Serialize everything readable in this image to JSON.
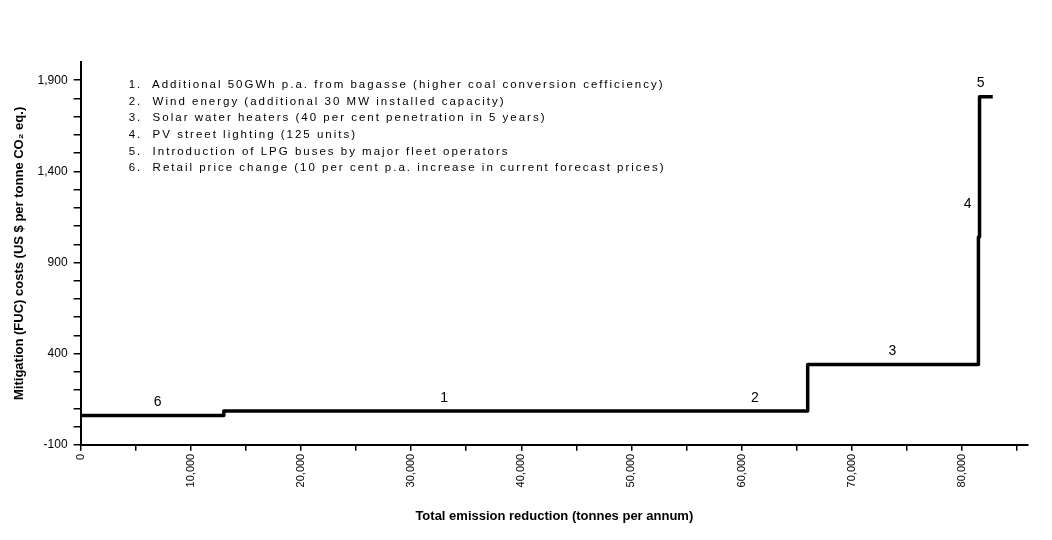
{
  "chart_data": {
    "type": "step",
    "xlabel": "Total emission reduction (tonnes per annum)",
    "ylabel": "Mitigation (FUC) costs (US $ per tonne CO₂ eq.)",
    "x": [
      0,
      13000,
      66000,
      81500,
      81600,
      82800
    ],
    "series": [
      {
        "color": "#000000",
        "values": [
          60,
          85,
          340,
          1040,
          1810,
          1810
        ]
      }
    ],
    "xlim": [
      0,
      86000
    ],
    "xticks": [
      {
        "value": 0,
        "label": "0"
      },
      {
        "value": 5000,
        "label": null
      },
      {
        "value": 10000,
        "label": "10,000"
      },
      {
        "value": 15000,
        "label": null
      },
      {
        "value": 20000,
        "label": "20,000"
      },
      {
        "value": 25000,
        "label": null
      },
      {
        "value": 30000,
        "label": "30,000"
      },
      {
        "value": 35000,
        "label": null
      },
      {
        "value": 40000,
        "label": "40,000"
      },
      {
        "value": 45000,
        "label": null
      },
      {
        "value": 50000,
        "label": "50,000"
      },
      {
        "value": 55000,
        "label": null
      },
      {
        "value": 60000,
        "label": "60,000"
      },
      {
        "value": 65000,
        "label": null
      },
      {
        "value": 70000,
        "label": "70,000"
      },
      {
        "value": 75000,
        "label": null
      },
      {
        "value": 80000,
        "label": "80,000"
      },
      {
        "value": 85000,
        "label": null
      }
    ],
    "ylim": [
      -100,
      2000
    ],
    "yticks": [
      -100,
      {
        "value": 0,
        "label": null
      },
      {
        "value": 100,
        "label": null
      },
      {
        "value": 200,
        "label": null
      },
      {
        "value": 300,
        "label": null
      },
      400,
      {
        "value": 500,
        "label": null
      },
      {
        "value": 600,
        "label": null
      },
      {
        "value": 700,
        "label": null
      },
      {
        "value": 800,
        "label": null
      },
      900,
      {
        "value": 1000,
        "label": null
      },
      {
        "value": 1100,
        "label": null
      },
      {
        "value": 1200,
        "label": null
      },
      {
        "value": 1300,
        "label": null
      },
      {
        "value": 1400,
        "label": "1,400"
      },
      {
        "value": 1500,
        "label": null
      },
      {
        "value": 1600,
        "label": null
      },
      {
        "value": 1700,
        "label": null
      },
      {
        "value": 1800,
        "label": null
      },
      {
        "value": 1900,
        "label": "1,900"
      }
    ],
    "annotations": [
      "1.  Additional 50GWh p.a. from bagasse (higher coal conversion cefficiency)",
      "2.  Wind energy (additional 30 MW installed capacity)",
      "3.  Solar water heaters (40 per cent penetration in 5 years)",
      "4.  PV street lighting (125 units)",
      "5.  Introduction of LPG buses by major fleet operators",
      "6.  Retail price change (10 per cent p.a. increase in current forecast prices)",
      {
        "text": "6",
        "x": 7000,
        "y": 60
      },
      {
        "text": "1",
        "x": 33000,
        "y": 85
      },
      {
        "text": "2",
        "x": 61200,
        "y": 85
      },
      {
        "text": "3",
        "x": 73700,
        "y": 340
      },
      {
        "text": "4",
        "x": 81600,
        "y": 1120
      },
      {
        "text": "5",
        "x": 81700,
        "y": 1810
      }
    ],
    "grid": false,
    "legend": false,
    "marker": "none",
    "line_style": "solid"
  }
}
